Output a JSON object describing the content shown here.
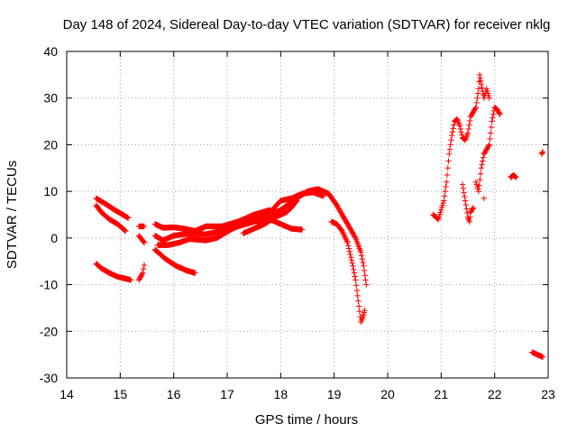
{
  "chart_data": {
    "type": "scatter",
    "title": "Day 148 of 2024, Sidereal Day-to-day VTEC variation (SDTVAR) for receiver nklg",
    "xlabel": "GPS time / hours",
    "ylabel": "SDTVAR / TECUs",
    "xlim": [
      14,
      23
    ],
    "ylim": [
      -30,
      40
    ],
    "xticks": [
      14,
      15,
      16,
      17,
      18,
      19,
      20,
      21,
      22,
      23
    ],
    "yticks": [
      -30,
      -20,
      -10,
      0,
      10,
      20,
      30,
      40
    ],
    "grid": true,
    "marker": "+",
    "color": "#ff0000",
    "segments": [
      [
        [
          14.55,
          8.5
        ],
        [
          14.7,
          7.5
        ],
        [
          14.9,
          6.0
        ],
        [
          15.05,
          5.0
        ],
        [
          15.15,
          4.3
        ]
      ],
      [
        [
          14.55,
          7.0
        ],
        [
          14.65,
          5.5
        ],
        [
          14.8,
          4.0
        ],
        [
          14.95,
          3.0
        ],
        [
          15.1,
          1.5
        ]
      ],
      [
        [
          14.55,
          -5.5
        ],
        [
          14.65,
          -6.5
        ],
        [
          14.8,
          -7.5
        ],
        [
          14.95,
          -8.3
        ],
        [
          15.1,
          -8.7
        ],
        [
          15.2,
          -9.0
        ]
      ],
      [
        [
          15.35,
          -9.0
        ],
        [
          15.42,
          -7.5
        ],
        [
          15.45,
          -5.8
        ]
      ],
      [
        [
          15.35,
          2.5
        ],
        [
          15.45,
          2.5
        ]
      ],
      [
        [
          15.35,
          0.5
        ],
        [
          15.45,
          -1.0
        ]
      ],
      [
        [
          15.65,
          3.0
        ],
        [
          15.8,
          2.2
        ],
        [
          16.0,
          2.3
        ],
        [
          16.2,
          2.0
        ],
        [
          16.4,
          1.5
        ],
        [
          16.6,
          2.5
        ],
        [
          16.9,
          2.5
        ],
        [
          17.2,
          3.5
        ],
        [
          17.5,
          5.0
        ],
        [
          17.8,
          6.0
        ]
      ],
      [
        [
          15.65,
          0.5
        ],
        [
          15.8,
          -0.5
        ],
        [
          16.0,
          0.5
        ],
        [
          16.3,
          1.0
        ],
        [
          16.6,
          0.8
        ],
        [
          16.9,
          1.5
        ],
        [
          17.2,
          2.5
        ],
        [
          17.5,
          3.5
        ],
        [
          17.8,
          4.0
        ],
        [
          18.0,
          3.0
        ],
        [
          18.2,
          2.0
        ],
        [
          18.4,
          1.8
        ]
      ],
      [
        [
          15.65,
          -2.5
        ],
        [
          15.85,
          -4.5
        ],
        [
          16.05,
          -6.0
        ],
        [
          16.25,
          -7.0
        ],
        [
          16.4,
          -7.5
        ]
      ],
      [
        [
          15.7,
          -1.5
        ],
        [
          15.9,
          -1.5
        ],
        [
          16.1,
          -1.0
        ],
        [
          16.3,
          -0.2
        ],
        [
          16.6,
          -0.5
        ],
        [
          16.8,
          0.0
        ],
        [
          17.1,
          2.0
        ],
        [
          17.4,
          3.5
        ],
        [
          17.7,
          4.5
        ],
        [
          18.0,
          6.0
        ],
        [
          18.3,
          8.5
        ],
        [
          18.5,
          10.0
        ],
        [
          18.7,
          10.5
        ],
        [
          18.9,
          9.5
        ],
        [
          19.05,
          7.0
        ],
        [
          19.15,
          5.0
        ],
        [
          19.3,
          2.0
        ],
        [
          19.4,
          0.0
        ],
        [
          19.5,
          -3.0
        ],
        [
          19.55,
          -6.0
        ],
        [
          19.6,
          -10.0
        ]
      ],
      [
        [
          17.0,
          2.5
        ],
        [
          17.3,
          3.5
        ],
        [
          17.6,
          4.0
        ],
        [
          17.8,
          5.5
        ],
        [
          18.0,
          8.0
        ],
        [
          18.2,
          8.5
        ],
        [
          18.4,
          9.5
        ],
        [
          18.6,
          9.8
        ],
        [
          18.8,
          9.0
        ]
      ],
      [
        [
          17.3,
          1.0
        ],
        [
          17.5,
          2.0
        ],
        [
          17.7,
          3.0
        ],
        [
          17.9,
          4.5
        ],
        [
          18.1,
          5.5
        ],
        [
          18.2,
          6.5
        ],
        [
          18.3,
          8.0
        ]
      ],
      [
        [
          18.95,
          3.5
        ],
        [
          19.05,
          3.0
        ],
        [
          19.15,
          1.5
        ],
        [
          19.25,
          -1.0
        ],
        [
          19.3,
          -3.5
        ],
        [
          19.35,
          -6.0
        ],
        [
          19.4,
          -9.0
        ],
        [
          19.45,
          -13.5
        ],
        [
          19.5,
          -18.0
        ],
        [
          19.55,
          -16.5
        ],
        [
          19.57,
          -15.5
        ]
      ],
      [
        [
          20.85,
          5.0
        ],
        [
          20.9,
          4.5
        ],
        [
          20.95,
          4.0
        ],
        [
          21.0,
          6.0
        ],
        [
          21.05,
          8.0
        ],
        [
          21.1,
          12.0
        ],
        [
          21.15,
          18.0
        ],
        [
          21.2,
          22.0
        ],
        [
          21.25,
          25.0
        ],
        [
          21.3,
          25.5
        ],
        [
          21.35,
          24.0
        ],
        [
          21.4,
          21.5
        ],
        [
          21.45,
          21.0
        ],
        [
          21.5,
          22.5
        ],
        [
          21.55,
          26.0
        ],
        [
          21.6,
          27.0
        ],
        [
          21.65,
          28.0
        ],
        [
          21.7,
          32.0
        ],
        [
          21.72,
          35.0
        ],
        [
          21.75,
          33.0
        ],
        [
          21.8,
          30.0
        ],
        [
          21.85,
          32.0
        ],
        [
          21.9,
          30.0
        ]
      ],
      [
        [
          21.4,
          11.5
        ],
        [
          21.45,
          8.0
        ],
        [
          21.5,
          4.5
        ],
        [
          21.53,
          3.5
        ],
        [
          21.55,
          5.5
        ],
        [
          21.6,
          6.5
        ]
      ],
      [
        [
          21.65,
          12.0
        ],
        [
          21.7,
          10.0
        ],
        [
          21.75,
          15.0
        ],
        [
          21.8,
          18.0
        ],
        [
          21.85,
          19.0
        ],
        [
          21.9,
          20.0
        ],
        [
          21.95,
          25.0
        ],
        [
          22.0,
          28.0
        ],
        [
          22.05,
          27.5
        ],
        [
          22.1,
          26.5
        ]
      ],
      [
        [
          21.8,
          8.5
        ]
      ],
      [
        [
          22.3,
          13.0
        ],
        [
          22.35,
          13.5
        ],
        [
          22.4,
          13.0
        ]
      ],
      [
        [
          22.7,
          -24.5
        ],
        [
          22.8,
          -25.0
        ],
        [
          22.9,
          -25.5
        ]
      ],
      [
        [
          22.88,
          18.0
        ],
        [
          22.9,
          18.5
        ]
      ]
    ]
  }
}
